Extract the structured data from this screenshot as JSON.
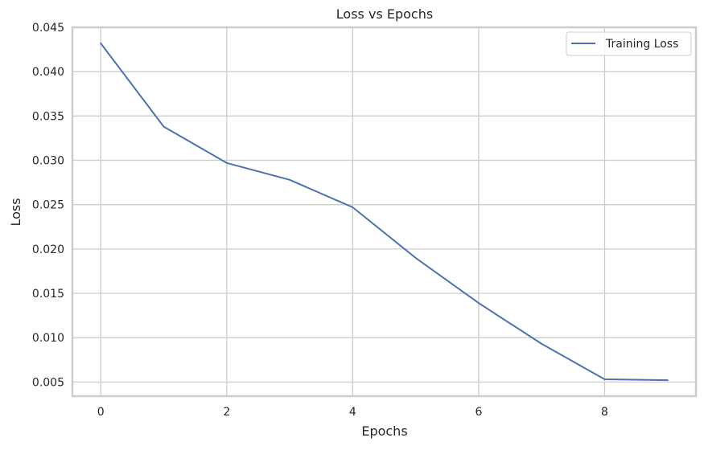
{
  "chart_data": {
    "type": "line",
    "title": "Loss vs Epochs",
    "xlabel": "Epochs",
    "ylabel": "Loss",
    "xlim": [
      -0.45,
      9.45
    ],
    "ylim": [
      0.0034,
      0.045
    ],
    "x_ticks": [
      0,
      2,
      4,
      6,
      8
    ],
    "x_tick_labels": [
      "0",
      "2",
      "4",
      "6",
      "8"
    ],
    "y_ticks": [
      0.005,
      0.01,
      0.015,
      0.02,
      0.025,
      0.03,
      0.035,
      0.04,
      0.045
    ],
    "y_tick_labels": [
      "0.005",
      "0.010",
      "0.015",
      "0.020",
      "0.025",
      "0.030",
      "0.035",
      "0.040",
      "0.045"
    ],
    "grid": true,
    "legend_position": "top-right",
    "series": [
      {
        "name": "Training Loss",
        "color": "#4c72b0",
        "x": [
          0,
          1,
          2,
          3,
          4,
          5,
          6,
          7,
          8,
          9
        ],
        "y": [
          0.0432,
          0.0338,
          0.0297,
          0.0278,
          0.0247,
          0.019,
          0.0139,
          0.0093,
          0.0053,
          0.0052
        ]
      }
    ]
  }
}
